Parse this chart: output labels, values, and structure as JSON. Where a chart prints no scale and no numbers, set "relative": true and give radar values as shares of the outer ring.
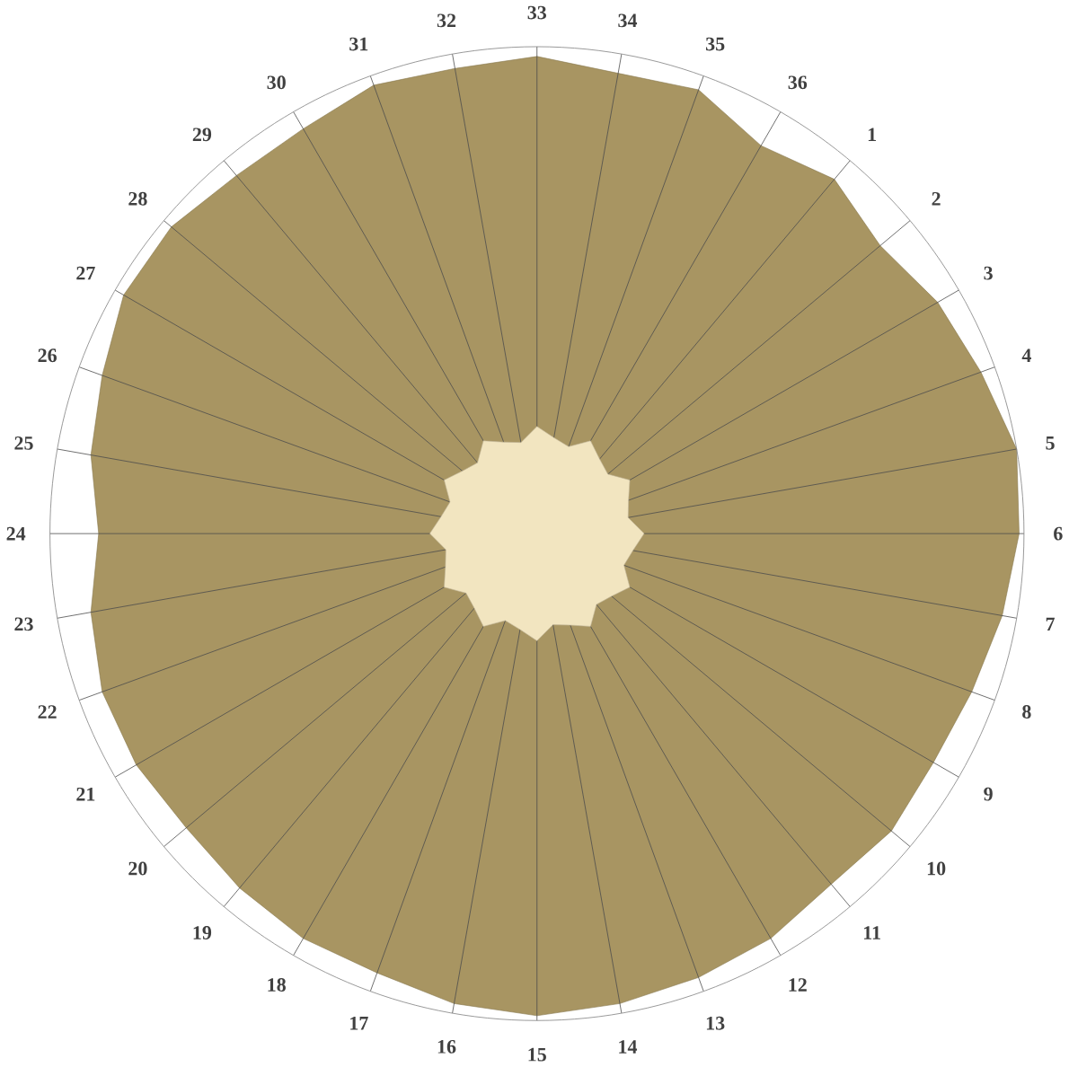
{
  "chart_data": {
    "type": "radar",
    "relative": true,
    "grid": true,
    "categories": [
      "33",
      "34",
      "35",
      "36",
      "1",
      "2",
      "3",
      "4",
      "5",
      "6",
      "7",
      "8",
      "9",
      "10",
      "11",
      "12",
      "13",
      "14",
      "15",
      "16",
      "17",
      "18",
      "19",
      "20",
      "21",
      "22",
      "23",
      "24",
      "25",
      "26",
      "27",
      "28",
      "29",
      "30",
      "31",
      "32"
    ],
    "series": [
      {
        "values": [
          0.98,
          0.96,
          0.97,
          0.92,
          0.95,
          0.92,
          0.95,
          0.97,
          1.0,
          0.99,
          0.97,
          0.95,
          0.94,
          0.95,
          0.94,
          0.96,
          0.97,
          0.98,
          0.99,
          0.98,
          0.96,
          0.96,
          0.95,
          0.94,
          0.95,
          0.95,
          0.93,
          0.9,
          0.93,
          0.95,
          0.98,
          0.98,
          0.96,
          0.96,
          0.98,
          0.97
        ],
        "color": "#a89562"
      },
      {
        "values": [
          0.22,
          0.2,
          0.19,
          0.22,
          0.2,
          0.19,
          0.22,
          0.2,
          0.19,
          0.22,
          0.2,
          0.19,
          0.22,
          0.2,
          0.19,
          0.22,
          0.2,
          0.19,
          0.22,
          0.2,
          0.19,
          0.22,
          0.2,
          0.19,
          0.22,
          0.2,
          0.19,
          0.22,
          0.2,
          0.19,
          0.22,
          0.2,
          0.19,
          0.22,
          0.2,
          0.19
        ],
        "color": "#f2e5c0"
      }
    ]
  }
}
